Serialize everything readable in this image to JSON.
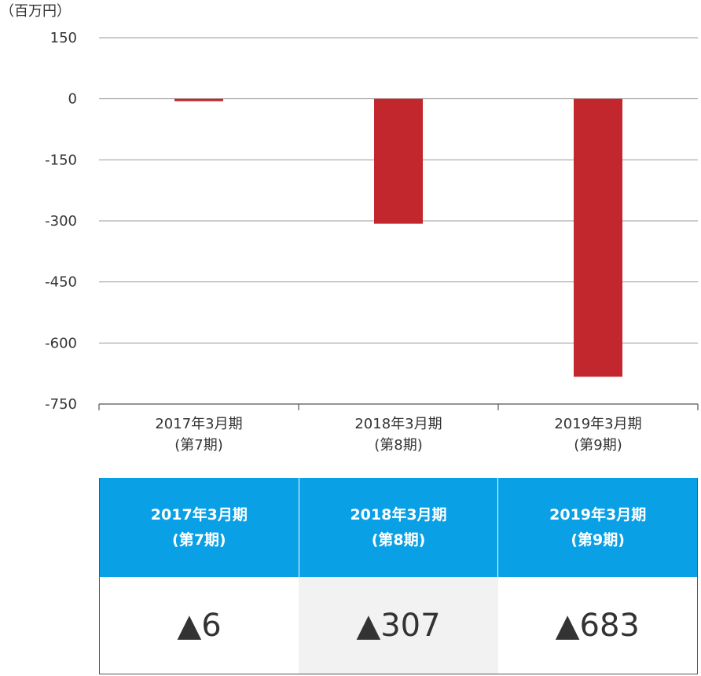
{
  "chart_data": {
    "type": "bar",
    "unit_label": "（百万円）",
    "categories": [
      {
        "line1": "2017年3月期",
        "line2": "(第7期)"
      },
      {
        "line1": "2018年3月期",
        "line2": "(第8期)"
      },
      {
        "line1": "2019年3月期",
        "line2": "(第9期)"
      }
    ],
    "values": [
      -6,
      -307,
      -683
    ],
    "ylim": [
      -750,
      150
    ],
    "yticks": [
      150,
      0,
      -150,
      -300,
      -450,
      -600,
      -750
    ],
    "ytick_labels": [
      "150",
      "0",
      "-150",
      "-300",
      "-450",
      "-600",
      "-750"
    ],
    "grid": true,
    "bar_color": "#c1272d"
  },
  "table": {
    "header_color": "#0aa0e6",
    "headers": [
      {
        "line1": "2017年3月期",
        "line2": "(第7期)"
      },
      {
        "line1": "2018年3月期",
        "line2": "(第8期)"
      },
      {
        "line1": "2019年3月期",
        "line2": "(第9期)"
      }
    ],
    "values": [
      "▲6",
      "▲307",
      "▲683"
    ]
  }
}
